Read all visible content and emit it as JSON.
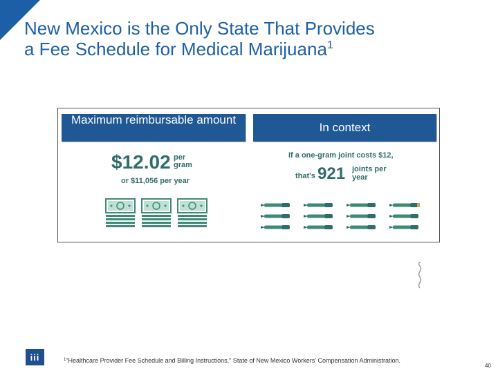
{
  "slide": {
    "title_line1": "New Mexico is the Only State That Provides",
    "title_line2": "a Fee Schedule for Medical Marijuana",
    "title_footnote_ref": "1",
    "accent_color": "#1d5fa6"
  },
  "infographic": {
    "left_header": "Maximum reimbursable amount",
    "right_header": "In context",
    "header_color": "#205795",
    "text_color": "#2f6c6a",
    "price": "$12.02",
    "price_unit": "per gram",
    "annual": "or $11,056 per year",
    "bill_icons": [
      "money-bill-icon",
      "money-bill-icon",
      "money-bill-icon"
    ],
    "context_line": "If a one-gram joint costs $12,",
    "context_thats": "that's",
    "context_number": "921",
    "context_unit": "joints per year",
    "joint_icon_count": 12
  },
  "footer": {
    "logo_text": "iii",
    "footnote_ref": "1",
    "footnote_text": "\"Healthcare Provider Fee Schedule and Billing Instructions,\" State of New Mexico Workers' Compensation Administration.",
    "page_number": "40"
  }
}
